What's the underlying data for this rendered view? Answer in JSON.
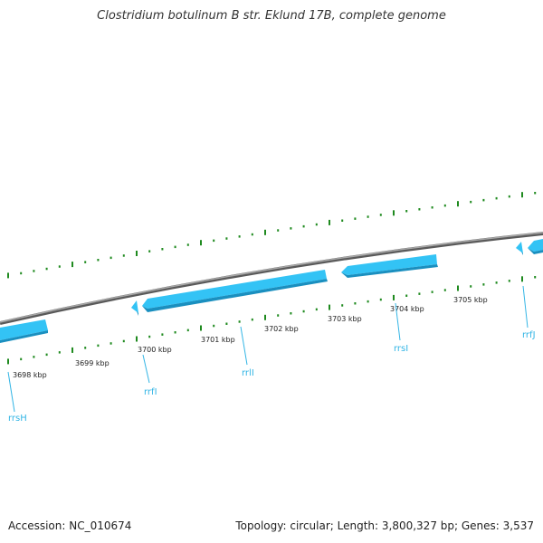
{
  "title": "Clostridium botulinum B str. Eklund 17B, complete genome",
  "footer": {
    "accession": "Accession: NC_010674",
    "stats": "Topology: circular; Length: 3,800,327 bp; Genes: 3,537"
  },
  "colors": {
    "backbone": "#7a7a7a",
    "gene_fill": "#33c3f5",
    "gene_shade": "#1a8fbf",
    "tick": "#1f8a1f",
    "label": "#33b5e5"
  },
  "tick_labels": [
    {
      "kbp": 3698,
      "text": "3698 kbp"
    },
    {
      "kbp": 3699,
      "text": "3699 kbp"
    },
    {
      "kbp": 3700,
      "text": "3700 kbp"
    },
    {
      "kbp": 3701,
      "text": "3701 kbp"
    },
    {
      "kbp": 3702,
      "text": "3702 kbp"
    },
    {
      "kbp": 3703,
      "text": "3703 kbp"
    },
    {
      "kbp": 3704,
      "text": "3704 kbp"
    },
    {
      "kbp": 3705,
      "text": "3705 kbp"
    }
  ],
  "gene_labels": [
    {
      "id": "rrsH",
      "text": "rrsH"
    },
    {
      "id": "rrfI",
      "text": "rrfI"
    },
    {
      "id": "rrlI",
      "text": "rrlI"
    },
    {
      "id": "rrsI",
      "text": "rrsI"
    },
    {
      "id": "rrfJ",
      "text": "rrfJ"
    }
  ]
}
